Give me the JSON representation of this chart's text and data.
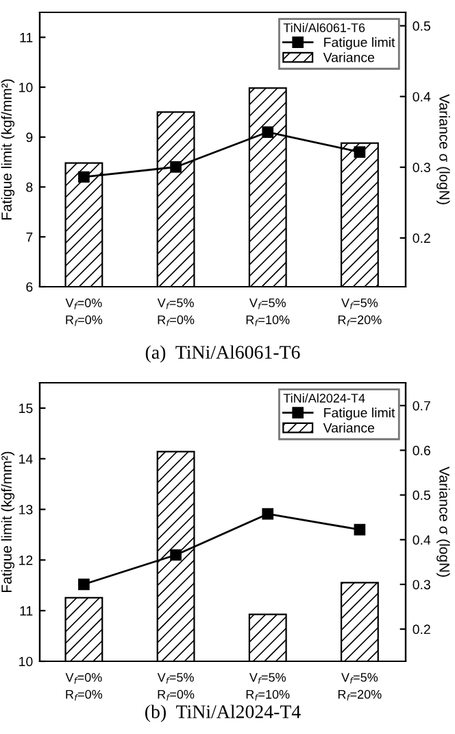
{
  "chart_data": [
    {
      "type": "bar",
      "title": "(a)  TiNi/Al6061-T6",
      "ylabel": "Fatigue limit (kgf/mm²)",
      "y2label": "Variance σ (logN)",
      "legend_title": "TiNi/Al6061-T6",
      "legend": "top right",
      "grid": false,
      "categories": [
        "V$_{f}$=0%\nR$_{f}$=0%",
        "V$_{f}$=5%\nR$_{f}$=0%",
        "V$_{f}$=5%\nR$_{f}$=10%",
        "V$_{f}$=5%\nR$_{f}$=20%"
      ],
      "ylim": [
        6,
        11.5
      ],
      "yticks": [
        6,
        7,
        8,
        9,
        10,
        11
      ],
      "y2lim": [
        0.131,
        0.519
      ],
      "y2ticks": [
        0.2,
        0.3,
        0.4,
        0.5
      ],
      "series": [
        {
          "name": "Fatigue limit",
          "type": "line",
          "color": "#000000",
          "marker": "square",
          "line_style": "solid",
          "values": [
            8.2,
            8.4,
            9.1,
            8.7
          ]
        },
        {
          "name": "Variance",
          "axis": "y2",
          "color": "#000000",
          "values": [
            0.306,
            0.378,
            0.412,
            0.334
          ]
        }
      ]
    },
    {
      "type": "bar",
      "title": "(b)  TiNi/Al2024-T4",
      "ylabel": "Fatigue limit (kgf/mm²)",
      "y2label": "Variance σ (logN)",
      "legend_title": "TiNi/Al2024-T4",
      "legend": "top right",
      "grid": false,
      "categories": [
        "V$_{f}$=0%\nR$_{f}$=0%",
        "V$_{f}$=5%\nR$_{f}$=0%",
        "V$_{f}$=5%\nR$_{f}$=10%",
        "V$_{f}$=5%\nR$_{f}$=20%"
      ],
      "ylim": [
        10,
        15.5
      ],
      "yticks": [
        10,
        11,
        12,
        13,
        14,
        15
      ],
      "y2lim": [
        0.128,
        0.751
      ],
      "y2ticks": [
        0.2,
        0.3,
        0.4,
        0.5,
        0.6,
        0.7
      ],
      "series": [
        {
          "name": "Fatigue limit",
          "type": "line",
          "color": "#000000",
          "marker": "square",
          "line_style": "solid",
          "values": [
            11.52,
            12.1,
            12.91,
            12.6
          ]
        },
        {
          "name": "Variance",
          "axis": "y2",
          "color": "#000000",
          "values": [
            0.27,
            0.597,
            0.233,
            0.304
          ]
        }
      ]
    }
  ]
}
